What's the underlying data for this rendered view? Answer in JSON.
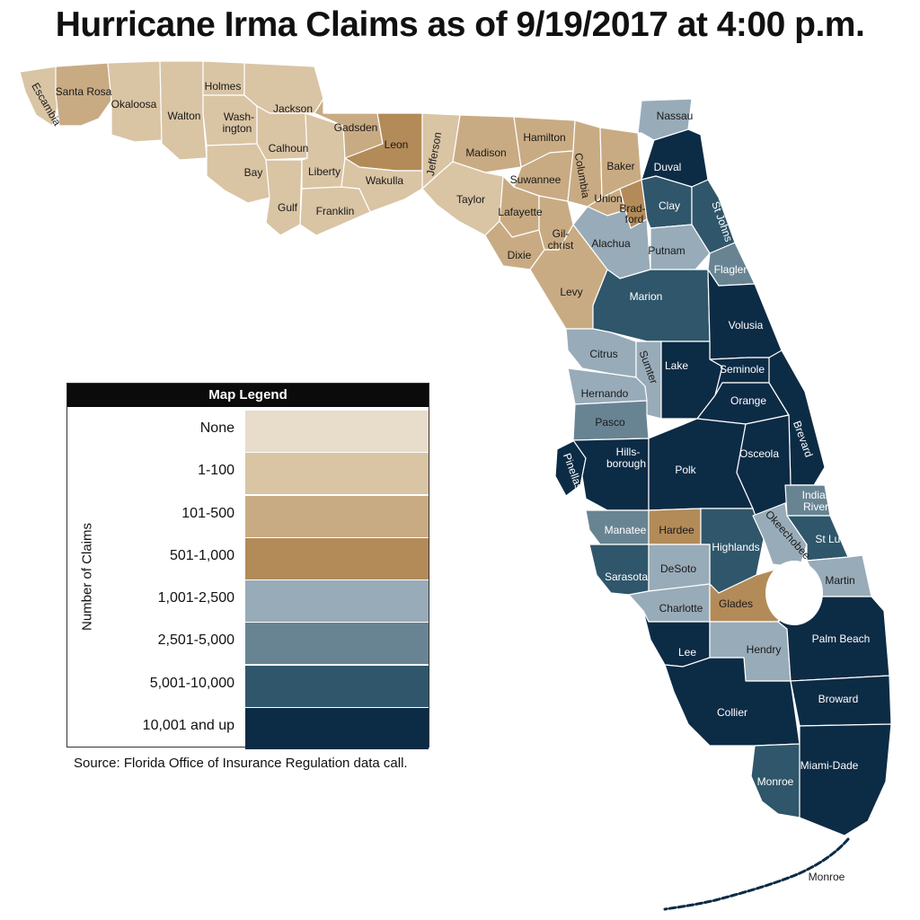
{
  "title": "Hurricane Irma Claims as of 9/19/2017 at 4:00 p.m.",
  "source": "Source: Florida Office of Insurance Regulation data call.",
  "colors": {
    "none": "#e8dccb",
    "c1_100": "#d9c4a4",
    "c101_500": "#c9ab83",
    "c501_1000": "#b38b58",
    "c1001_2500": "#98abb8",
    "c2501_5000": "#688493",
    "c5001_10000": "#2f566a",
    "c10001_up": "#0c2b45"
  },
  "legend": {
    "header": "Map Legend",
    "axis_label": "Number of Claims",
    "items": [
      {
        "label": "None",
        "color": "#e8dccb"
      },
      {
        "label": "1-100",
        "color": "#d9c4a4"
      },
      {
        "label": "101-500",
        "color": "#c9ab83"
      },
      {
        "label": "501-1,000",
        "color": "#b38b58"
      },
      {
        "label": "1,001-2,500",
        "color": "#98abb8"
      },
      {
        "label": "2,501-5,000",
        "color": "#688493"
      },
      {
        "label": "5,001-10,000",
        "color": "#2f566a"
      },
      {
        "label": "10,001 and up",
        "color": "#0c2b45"
      }
    ]
  },
  "counties": {
    "escambia": "Escambia",
    "santa_rosa": "Santa Rosa",
    "okaloosa": "Okaloosa",
    "walton": "Walton",
    "holmes": "Holmes",
    "washington": "Wash-\nington",
    "jackson": "Jackson",
    "calhoun": "Calhoun",
    "bay": "Bay",
    "gulf": "Gulf",
    "liberty": "Liberty",
    "franklin": "Franklin",
    "gadsden": "Gadsden",
    "leon": "Leon",
    "wakulla": "Wakulla",
    "jefferson": "Jefferson",
    "madison": "Madison",
    "taylor": "Taylor",
    "hamilton": "Hamilton",
    "suwannee": "Suwannee",
    "lafayette": "Lafayette",
    "dixie": "Dixie",
    "columbia": "Columbia",
    "baker": "Baker",
    "union": "Union",
    "bradford": "Brad-\nford",
    "gilchrist": "Gil-\nchrist",
    "levy": "Levy",
    "alachua": "Alachua",
    "nassau": "Nassau",
    "duval": "Duval",
    "clay": "Clay",
    "st_johns": "St Johns",
    "putnam": "Putnam",
    "flagler": "Flagler",
    "marion": "Marion",
    "volusia": "Volusia",
    "citrus": "Citrus",
    "sumter": "Sumter",
    "lake": "Lake",
    "seminole": "Seminole",
    "orange": "Orange",
    "hernando": "Hernando",
    "pasco": "Pasco",
    "brevard": "Brevard",
    "pinellas": "Pinellas",
    "hillsborough": "Hills-\nborough",
    "polk": "Polk",
    "osceola": "Osceola",
    "indian_river": "Indian\nRiver",
    "manatee": "Manatee",
    "hardee": "Hardee",
    "highlands": "Highlands",
    "okeechobee": "Okeechobee",
    "st_lucie": "St Lucie",
    "sarasota": "Sarasota",
    "desoto": "DeSoto",
    "martin": "Martin",
    "charlotte": "Charlotte",
    "glades": "Glades",
    "palm_beach": "Palm Beach",
    "lee": "Lee",
    "hendry": "Hendry",
    "broward": "Broward",
    "collier": "Collier",
    "miami_dade": "Miami-Dade",
    "monroe_mainland": "Monroe",
    "monroe_keys": "Monroe"
  }
}
